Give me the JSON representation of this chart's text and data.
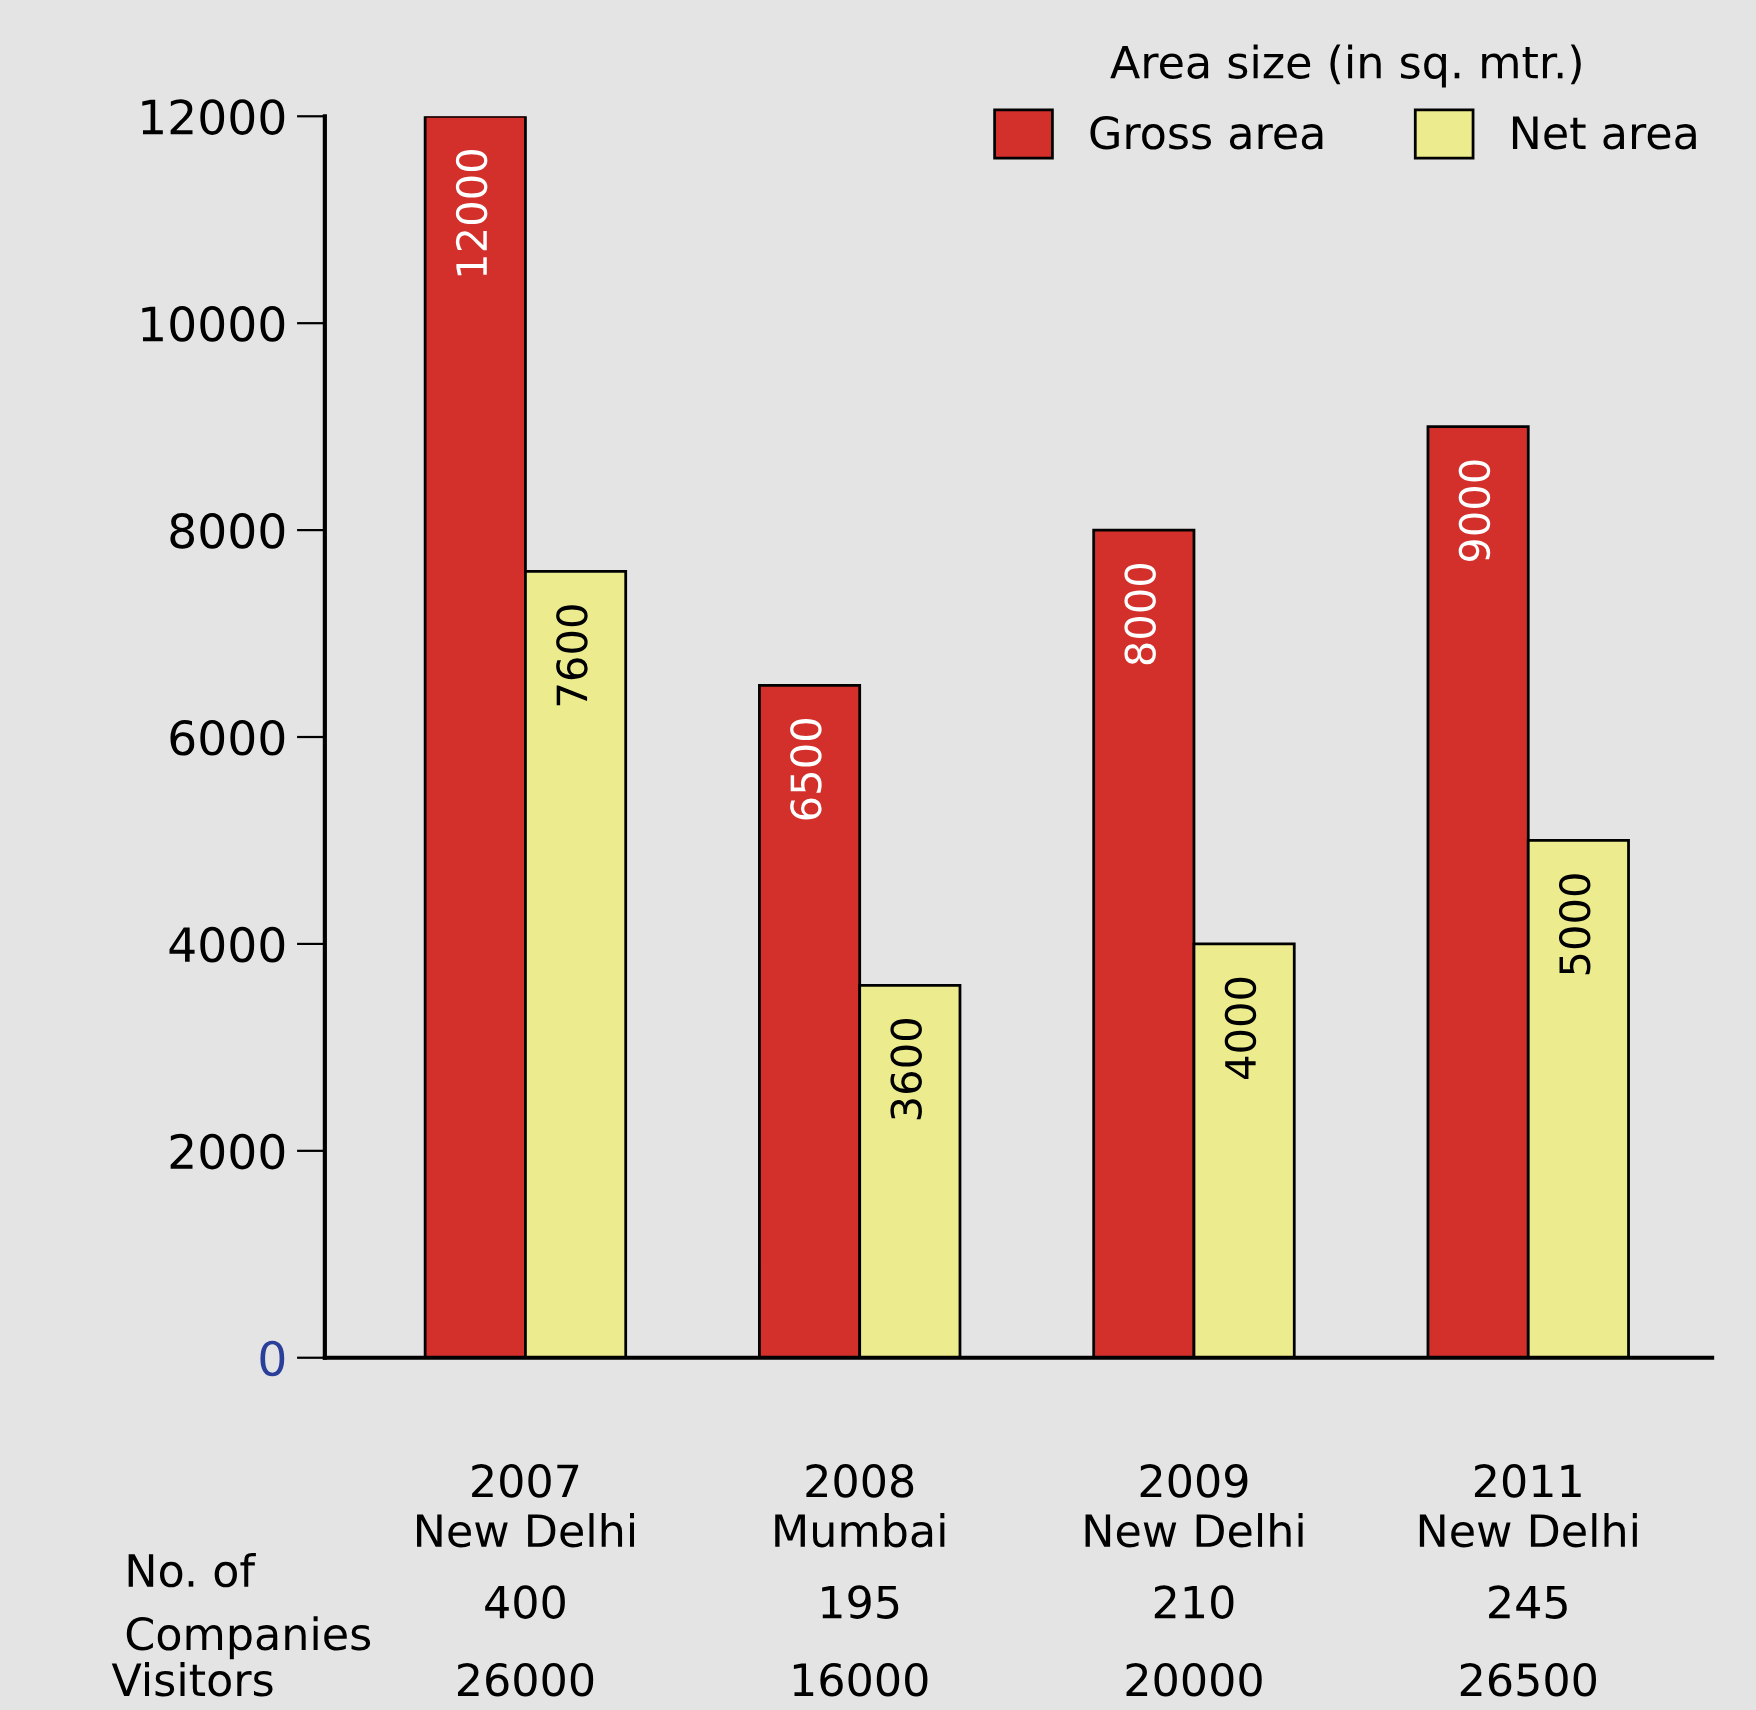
{
  "chart_data": {
    "type": "bar",
    "categories": [
      "2007\nNew Delhi",
      "2008\nMumbai",
      "2009\nNew Delhi",
      "2011\nNew Delhi"
    ],
    "series": [
      {
        "name": "Gross area",
        "color": "#d3302c",
        "values": [
          12000,
          6500,
          8000,
          9000
        ]
      },
      {
        "name": "Net area",
        "color": "#ecec8e",
        "values": [
          7600,
          3600,
          4000,
          5000
        ]
      }
    ],
    "legend_title": "Area size (in sq. mtr.)",
    "legend": "top right",
    "ylim": [
      0,
      12000
    ],
    "yticks": [
      0,
      2000,
      4000,
      6000,
      8000,
      10000,
      12000
    ],
    "data_labels": true,
    "grid": false,
    "annotations": [
      "No. of\nCompanies",
      "400",
      "195",
      "210",
      "245",
      "Visitors",
      "26000",
      "16000",
      "20000",
      "26500"
    ]
  }
}
